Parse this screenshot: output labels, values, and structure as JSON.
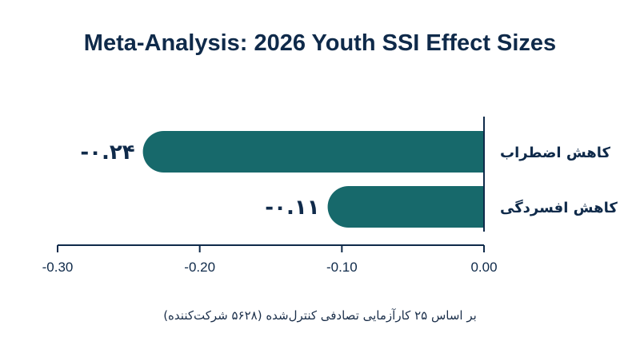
{
  "chart_data": {
    "type": "bar",
    "orientation": "horizontal",
    "title": "Meta-Analysis: 2026 Youth SSI Effect Sizes",
    "categories": [
      "کاهش اضطراب",
      "کاهش افسردگی"
    ],
    "values": [
      -0.24,
      -0.11
    ],
    "value_labels": [
      "-۰.۲۴",
      "-۰.۱۱"
    ],
    "xlim": [
      -0.3,
      0.0
    ],
    "x_ticks": [
      -0.3,
      -0.2,
      -0.1,
      0.0
    ],
    "x_tick_labels": [
      "-0.30",
      "-0.20",
      "-0.10",
      "0.00"
    ],
    "bar_color": "#17696b",
    "text_color": "#0f2a4a",
    "grid": false,
    "legend": "none"
  },
  "footnote": "بر اساس ۲۵ کارآزمایی تصادفی کنترل‌شده (۵۶۲۸ شرکت‌کننده)"
}
